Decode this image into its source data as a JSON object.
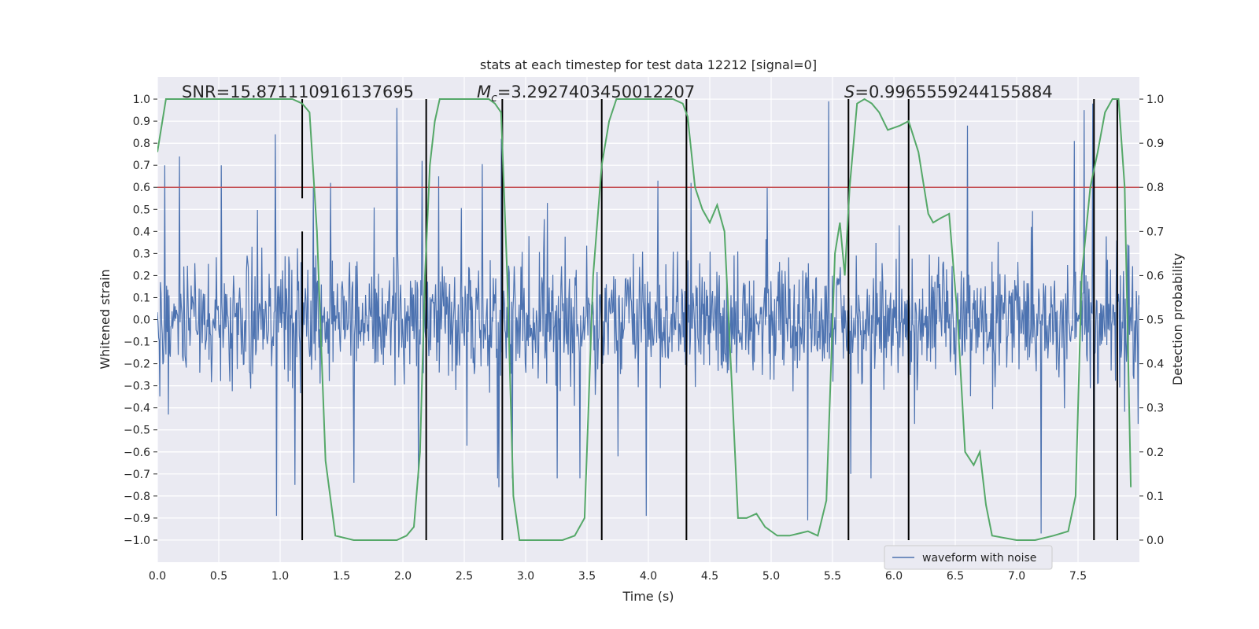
{
  "chart_data": {
    "type": "line",
    "title": "stats at each timestep for test data 12212 [signal=0]",
    "xlabel": "Time (s)",
    "ylabel_left": "Whitened strain",
    "ylabel_right": "Detection probability",
    "xlim": [
      0.0,
      8.0
    ],
    "ylim_left": [
      -1.1,
      1.1
    ],
    "ylim_right": [
      -0.05,
      1.05
    ],
    "x_ticks": [
      "0.0",
      "0.5",
      "1.0",
      "1.5",
      "2.0",
      "2.5",
      "3.0",
      "3.5",
      "4.0",
      "4.5",
      "5.0",
      "5.5",
      "6.0",
      "6.5",
      "7.0",
      "7.5"
    ],
    "y_ticks_left": [
      "1.0",
      "0.9",
      "0.8",
      "0.7",
      "0.6",
      "0.5",
      "0.4",
      "0.3",
      "0.2",
      "0.1",
      "0.0",
      "−0.1",
      "−0.2",
      "−0.3",
      "−0.4",
      "−0.5",
      "−0.6",
      "−0.7",
      "−0.8",
      "−0.9",
      "−1.0"
    ],
    "y_ticks_right": [
      "1.0",
      "0.9",
      "0.8",
      "0.7",
      "0.6",
      "0.5",
      "0.4",
      "0.3",
      "0.2",
      "0.1",
      "0.0"
    ],
    "grid": true,
    "threshold": 0.8,
    "threshold_color": "#c44e52",
    "waveform_color": "#4c72b0",
    "probability_color": "#55a868",
    "segment_line_color": "#000000",
    "background_color": "#eaeaf2",
    "legend": {
      "entries": [
        "waveform with noise"
      ],
      "position": "lower-right"
    },
    "annotations": {
      "snr": "SNR=15.871110916137695",
      "mc_symbol": "M",
      "mc_subscript": "c",
      "mc_value": "=3.2927403450012207",
      "s_symbol": "S",
      "s_value": "=0.9965559244155884"
    },
    "waveform": {
      "samples": 1600,
      "sigma": 0.14,
      "seed": 12212,
      "spikes": [
        {
          "t": 0.06,
          "v": 0.7
        },
        {
          "t": 0.18,
          "v": 0.74
        },
        {
          "t": 0.52,
          "v": 0.7
        },
        {
          "t": 0.96,
          "v": 0.84
        },
        {
          "t": 0.97,
          "v": -0.89
        },
        {
          "t": 1.12,
          "v": -0.75
        },
        {
          "t": 1.27,
          "v": 0.6
        },
        {
          "t": 1.41,
          "v": 0.62
        },
        {
          "t": 1.6,
          "v": -0.74
        },
        {
          "t": 1.95,
          "v": 0.96
        },
        {
          "t": 2.29,
          "v": 0.65
        },
        {
          "t": 2.8,
          "v": 0.82
        },
        {
          "t": 2.78,
          "v": -0.76
        },
        {
          "t": 3.44,
          "v": -0.72
        },
        {
          "t": 3.75,
          "v": -0.62
        },
        {
          "t": 3.98,
          "v": -0.89
        },
        {
          "t": 4.08,
          "v": 0.63
        },
        {
          "t": 4.35,
          "v": 0.62
        },
        {
          "t": 5.3,
          "v": -0.91
        },
        {
          "t": 5.47,
          "v": 0.99
        },
        {
          "t": 5.65,
          "v": -0.7
        },
        {
          "t": 6.6,
          "v": 0.88
        },
        {
          "t": 7.2,
          "v": -0.97
        },
        {
          "t": 7.55,
          "v": 0.95
        },
        {
          "t": 7.62,
          "v": 0.98
        },
        {
          "t": 7.63,
          "v": -0.85
        },
        {
          "t": 7.47,
          "v": 0.81
        }
      ]
    },
    "probability": {
      "t": [
        0.0,
        0.07,
        0.18,
        0.4,
        0.8,
        1.1,
        1.18,
        1.24,
        1.3,
        1.37,
        1.45,
        1.6,
        1.8,
        1.95,
        2.03,
        2.09,
        2.14,
        2.18,
        2.22,
        2.26,
        2.3,
        2.45,
        2.6,
        2.7,
        2.75,
        2.8,
        2.85,
        2.9,
        2.95,
        3.0,
        3.1,
        3.3,
        3.4,
        3.48,
        3.55,
        3.62,
        3.68,
        3.74,
        3.8,
        4.0,
        4.2,
        4.28,
        4.32,
        4.38,
        4.44,
        4.5,
        4.56,
        4.62,
        4.68,
        4.73,
        4.8,
        4.88,
        4.95,
        5.05,
        5.15,
        5.3,
        5.38,
        5.45,
        5.52,
        5.56,
        5.6,
        5.64,
        5.7,
        5.76,
        5.82,
        5.88,
        5.95,
        6.05,
        6.12,
        6.2,
        6.28,
        6.32,
        6.38,
        6.45,
        6.52,
        6.58,
        6.65,
        6.7,
        6.75,
        6.8,
        7.0,
        7.15,
        7.3,
        7.42,
        7.48,
        7.53,
        7.6,
        7.66,
        7.72,
        7.78,
        7.83,
        7.88,
        7.93
      ],
      "p": [
        0.88,
        1.0,
        1.0,
        1.0,
        1.0,
        1.0,
        0.99,
        0.97,
        0.7,
        0.18,
        0.01,
        0.0,
        0.0,
        0.0,
        0.01,
        0.03,
        0.2,
        0.6,
        0.85,
        0.95,
        1.0,
        1.0,
        1.0,
        1.0,
        0.99,
        0.97,
        0.6,
        0.1,
        0.0,
        0.0,
        0.0,
        0.0,
        0.01,
        0.05,
        0.6,
        0.85,
        0.95,
        1.0,
        1.0,
        1.0,
        1.0,
        0.99,
        0.96,
        0.8,
        0.75,
        0.72,
        0.76,
        0.7,
        0.35,
        0.05,
        0.05,
        0.06,
        0.03,
        0.01,
        0.01,
        0.02,
        0.01,
        0.09,
        0.65,
        0.72,
        0.6,
        0.8,
        0.99,
        1.0,
        0.99,
        0.97,
        0.93,
        0.94,
        0.95,
        0.88,
        0.74,
        0.72,
        0.73,
        0.74,
        0.5,
        0.2,
        0.17,
        0.2,
        0.08,
        0.01,
        0.0,
        0.0,
        0.01,
        0.02,
        0.1,
        0.6,
        0.8,
        0.88,
        0.97,
        1.0,
        1.0,
        0.8,
        0.12
      ]
    },
    "vertical_lines": [
      {
        "t": 1.18,
        "from": -1.0,
        "to": 0.4
      },
      {
        "t": 1.18,
        "from": 0.55,
        "to": 1.0
      },
      {
        "t": 2.19,
        "from": -1.0,
        "to": 1.0
      },
      {
        "t": 2.81,
        "from": -1.0,
        "to": 1.0
      },
      {
        "t": 3.62,
        "from": -1.0,
        "to": 1.0
      },
      {
        "t": 4.31,
        "from": -1.0,
        "to": 1.0
      },
      {
        "t": 5.63,
        "from": -1.0,
        "to": 1.0
      },
      {
        "t": 6.12,
        "from": -1.0,
        "to": 1.0
      },
      {
        "t": 7.63,
        "from": -1.0,
        "to": 1.0
      },
      {
        "t": 7.82,
        "from": -1.0,
        "to": 1.0
      }
    ]
  }
}
